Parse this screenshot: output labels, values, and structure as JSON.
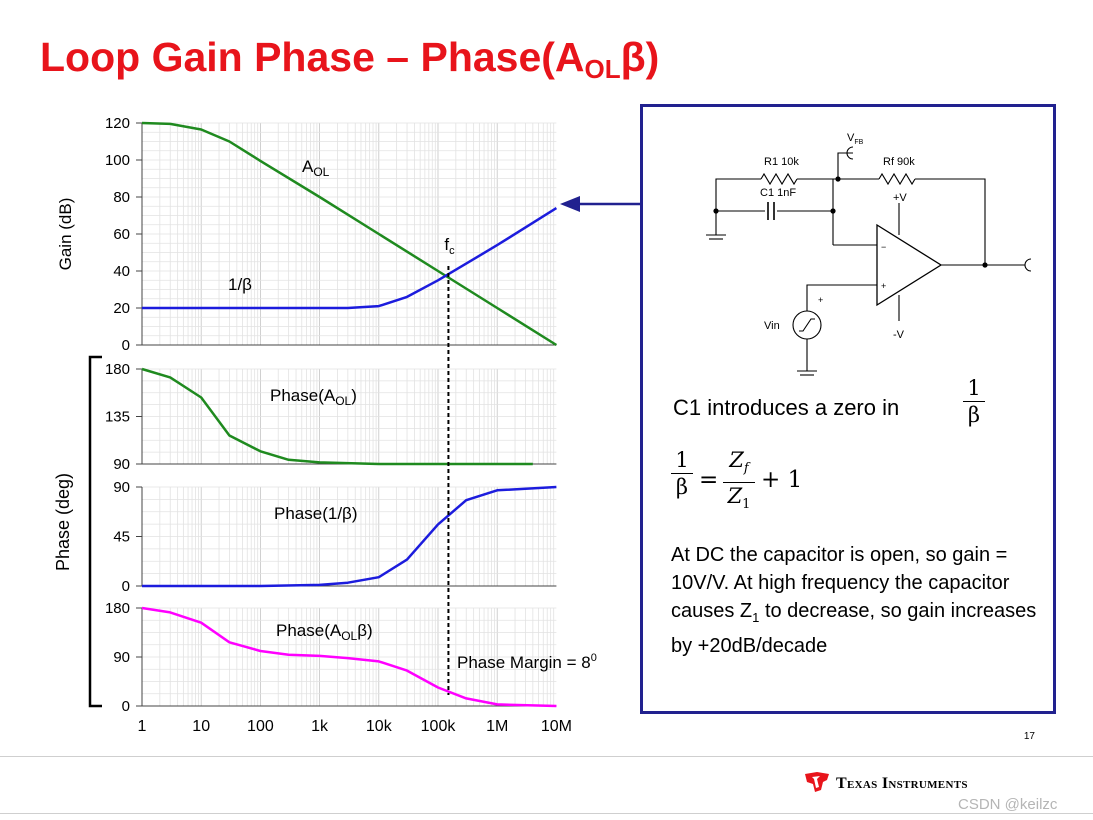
{
  "title": {
    "main": "Loop Gain Phase – Phase(A",
    "sub": "OL",
    "tail": "β)"
  },
  "colors": {
    "title": "#e8141b",
    "aol": "#1f8a1f",
    "beta": "#1c1cdd",
    "loop": "#ff00ff",
    "box_border": "#21218f"
  },
  "chart_data": [
    {
      "type": "line",
      "panel": "gain",
      "xscale": "log",
      "xlim": [
        1,
        10000000
      ],
      "ylabel": "Gain (dB)",
      "ylim": [
        0,
        120
      ],
      "yticks": [
        0,
        20,
        40,
        60,
        80,
        100,
        120
      ],
      "grid": true,
      "series": [
        {
          "name": "A_OL",
          "color": "#1f8a1f",
          "x": [
            1,
            3,
            10,
            30,
            100,
            1000,
            10000,
            100000,
            1000000,
            10000000
          ],
          "y": [
            120,
            119.5,
            116.5,
            110,
            99.5,
            80,
            60,
            40,
            20,
            0
          ]
        },
        {
          "name": "1/β",
          "color": "#1c1cdd",
          "x": [
            1,
            100,
            1000,
            3000,
            10000,
            30000,
            100000,
            300000,
            1000000,
            10000000
          ],
          "y": [
            20,
            20,
            20,
            20,
            21,
            26,
            35,
            44,
            54,
            74
          ]
        }
      ],
      "annotations": {
        "aol_label": "A",
        "aol_sub": "OL",
        "beta_label": "1/β",
        "fc_label": "f",
        "fc_sub": "c",
        "fc_x": 150000
      }
    },
    {
      "type": "line",
      "panel": "phase_aol",
      "xscale": "log",
      "xlim": [
        1,
        10000000
      ],
      "ylim": [
        90,
        180
      ],
      "yticks": [
        90,
        135,
        180
      ],
      "grid": true,
      "series": [
        {
          "name": "Phase(A_OL)",
          "color": "#1f8a1f",
          "x": [
            1,
            3,
            10,
            30,
            100,
            300,
            1000,
            10000,
            100000,
            1000000,
            4000000
          ],
          "y": [
            180,
            172,
            153,
            117,
            102,
            94,
            91.5,
            90,
            90,
            90,
            90
          ]
        }
      ],
      "label": "Phase(A",
      "label_sub": "OL",
      "label_tail": ")"
    },
    {
      "type": "line",
      "panel": "phase_beta",
      "xscale": "log",
      "xlim": [
        1,
        10000000
      ],
      "ylim": [
        0,
        90
      ],
      "yticks": [
        0,
        45,
        90
      ],
      "grid": true,
      "series": [
        {
          "name": "Phase(1/β)",
          "color": "#1c1cdd",
          "x": [
            1,
            100,
            1000,
            3000,
            10000,
            30000,
            100000,
            300000,
            1000000,
            10000000
          ],
          "y": [
            0,
            0,
            1,
            3,
            8,
            24,
            56,
            78,
            87,
            90
          ]
        }
      ],
      "label": "Phase(1/β)"
    },
    {
      "type": "line",
      "panel": "phase_loop",
      "xscale": "log",
      "xlim": [
        1,
        10000000
      ],
      "ylim": [
        0,
        180
      ],
      "yticks": [
        0,
        90,
        180
      ],
      "grid": true,
      "series": [
        {
          "name": "Phase(A_OLβ)",
          "color": "#ff00ff",
          "x": [
            1,
            3,
            10,
            30,
            100,
            300,
            1000,
            3000,
            10000,
            30000,
            100000,
            300000,
            1000000,
            10000000
          ],
          "y": [
            180,
            172,
            153,
            117,
            101,
            94,
            92,
            88,
            82,
            65,
            34,
            14,
            3,
            0
          ]
        }
      ],
      "label": "Phase(A",
      "label_sub": "OL",
      "label_tail": "β)",
      "annotation": "Phase Margin = 8",
      "annotation_sup": "0"
    }
  ],
  "axes": {
    "phase_ylabel": "Phase (deg)",
    "xtick_labels": [
      "1",
      "10",
      "100",
      "1k",
      "10k",
      "100k",
      "1M",
      "10M"
    ]
  },
  "schematic": {
    "vfb": "V",
    "vfb_sub": "FB",
    "r1": "R1 10k",
    "rf": "Rf 90k",
    "c1": "C1 1nF",
    "vpos": "+V",
    "vneg": "-V",
    "vin": "Vin",
    "plus": "+",
    "minus": "−"
  },
  "box": {
    "intro": "C1 introduces a zero in",
    "frac_num": "1",
    "frac_den": "β",
    "eq_lhs_num": "1",
    "eq_lhs_den": "β",
    "eq_op": "=",
    "eq_rhs_num": "Z",
    "eq_rhs_num_sub": "f",
    "eq_rhs_den": "Z",
    "eq_rhs_den_sub": "1",
    "eq_tail": "+ 1",
    "desc_1": "At DC the capacitor is open, so gain = 10V/V. At high frequency the capacitor causes Z",
    "desc_sub": "1",
    "desc_2": " to decrease, so gain increases by +20dB/decade"
  },
  "footer": {
    "page": "17",
    "company": "Texas Instruments",
    "watermark": "CSDN @keilzc"
  }
}
